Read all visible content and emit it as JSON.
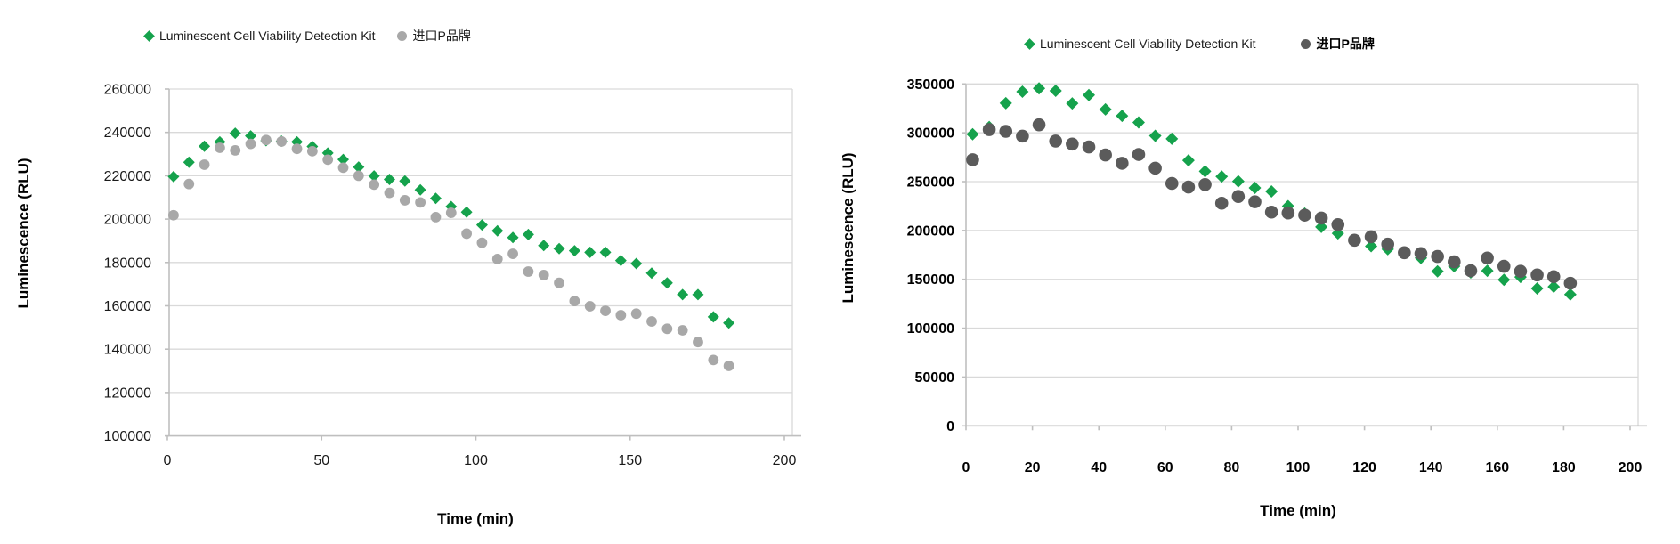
{
  "page": {
    "background": "#ffffff"
  },
  "chart_data": [
    {
      "type": "scatter",
      "title": "",
      "xlabel": "Time (min)",
      "ylabel": "Luminescence (RLU)",
      "xlim": [
        0,
        200
      ],
      "ylim": [
        100000,
        260000
      ],
      "x_ticks": [
        0,
        50,
        100,
        150,
        200
      ],
      "y_ticks": [
        100000,
        120000,
        140000,
        160000,
        180000,
        200000,
        220000,
        240000,
        260000
      ],
      "grid": "horizontal",
      "legend_position": "top",
      "x": [
        2,
        7,
        12,
        17,
        22,
        27,
        32,
        37,
        42,
        47,
        52,
        57,
        62,
        67,
        72,
        77,
        82,
        87,
        92,
        97,
        102,
        107,
        112,
        117,
        122,
        127,
        132,
        137,
        142,
        147,
        152,
        157,
        162,
        167,
        172,
        177,
        182
      ],
      "series": [
        {
          "name": "Luminescent Cell Viability Detection Kit",
          "marker": "diamond",
          "color": "#15A24C",
          "values": [
            219600,
            226200,
            233600,
            235600,
            239600,
            238400,
            236200,
            236000,
            235600,
            233500,
            230500,
            227500,
            224000,
            219900,
            218300,
            217600,
            213500,
            209600,
            205800,
            203200,
            197300,
            194600,
            191500,
            192900,
            187800,
            186400,
            185400,
            184700,
            184700,
            180900,
            179500,
            175100,
            170600,
            165200,
            165200,
            154900,
            152100
          ]
        },
        {
          "name": "进口P品牌",
          "marker": "circle",
          "color": "#A8A8A8",
          "values": [
            201800,
            216200,
            225100,
            232900,
            231700,
            234700,
            236500,
            235800,
            232400,
            231300,
            227400,
            223700,
            220000,
            215900,
            212100,
            208700,
            207700,
            200900,
            202900,
            193300,
            189100,
            181600,
            184000,
            175800,
            174200,
            170600,
            162200,
            159800,
            157700,
            155700,
            156400,
            152800,
            149400,
            148700,
            143300,
            135000,
            132300
          ]
        }
      ]
    },
    {
      "type": "scatter",
      "title": "",
      "xlabel": "Time  (min)",
      "ylabel": "Luminescence  (RLU)",
      "xlim": [
        0,
        200
      ],
      "ylim": [
        0,
        350000
      ],
      "x_ticks": [
        0,
        20,
        40,
        60,
        80,
        100,
        120,
        140,
        160,
        180,
        200
      ],
      "y_ticks": [
        0,
        50000,
        100000,
        150000,
        200000,
        250000,
        300000,
        350000
      ],
      "grid": "horizontal",
      "legend_position": "top",
      "x": [
        2,
        7,
        12,
        17,
        22,
        27,
        32,
        37,
        42,
        47,
        52,
        57,
        62,
        67,
        72,
        77,
        82,
        87,
        92,
        97,
        102,
        107,
        112,
        117,
        122,
        127,
        132,
        137,
        142,
        147,
        152,
        157,
        162,
        167,
        172,
        177,
        182
      ],
      "series": [
        {
          "name": "Luminescent Cell Viability Detection Kit",
          "marker": "diamond",
          "color": "#15A24C",
          "values": [
            298500,
            306000,
            330300,
            342100,
            345500,
            343000,
            330100,
            338600,
            323900,
            317300,
            310600,
            296900,
            293900,
            271800,
            260600,
            255200,
            250400,
            243600,
            240000,
            224900,
            217300,
            203600,
            197000,
            190200,
            183900,
            180900,
            177000,
            171800,
            158200,
            163400,
            157000,
            158800,
            149500,
            152400,
            140600,
            142400,
            134500
          ]
        },
        {
          "name": "进口P品牌",
          "marker": "circle",
          "color": "#5B5B5B",
          "values": [
            272400,
            303300,
            301500,
            296600,
            308200,
            291500,
            288500,
            285500,
            277300,
            268800,
            277800,
            263800,
            248200,
            244500,
            247000,
            227900,
            234800,
            229400,
            218800,
            217900,
            215700,
            212700,
            206000,
            190000,
            193600,
            186000,
            177300,
            176400,
            173400,
            167900,
            158800,
            171800,
            163400,
            158200,
            154500,
            152700,
            146000
          ]
        }
      ]
    }
  ]
}
